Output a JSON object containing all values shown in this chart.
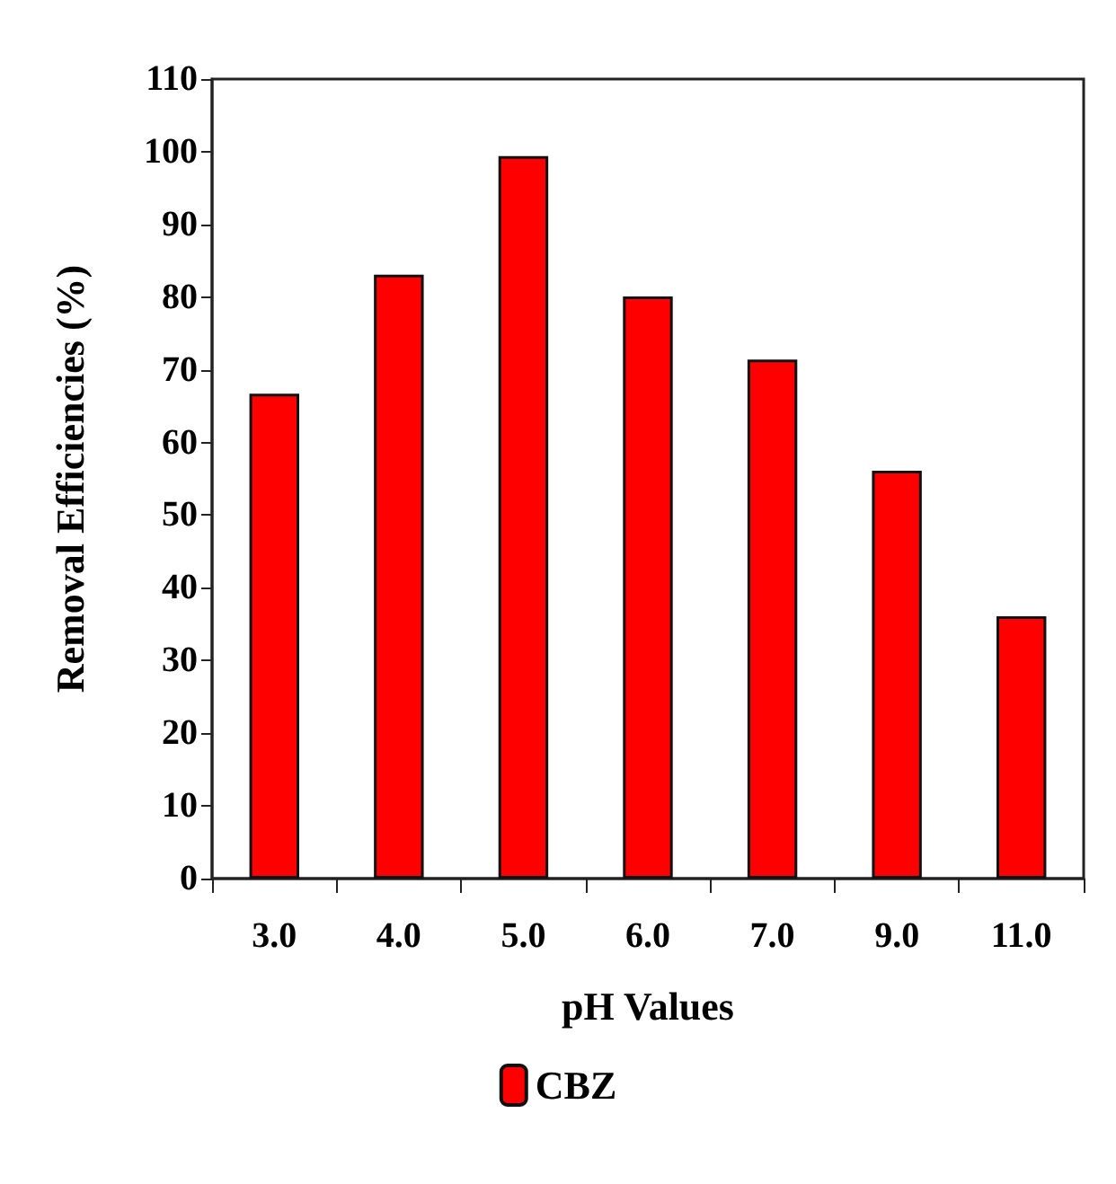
{
  "chart_data": {
    "type": "bar",
    "xlabel": "pH Values",
    "ylabel": "Removal Efficiencies (%)",
    "categories": [
      "3.0",
      "4.0",
      "5.0",
      "6.0",
      "7.0",
      "9.0",
      "11.0"
    ],
    "series": [
      {
        "name": "CBZ",
        "color": "#ff0000",
        "values": [
          66.7,
          83.1,
          99.4,
          80.1,
          71.4,
          56.1,
          36.1
        ]
      }
    ],
    "ylim": [
      0,
      110
    ],
    "yticks": [
      0,
      10,
      20,
      30,
      40,
      50,
      60,
      70,
      80,
      90,
      100,
      110
    ],
    "grid": false,
    "legend": "bottom"
  }
}
